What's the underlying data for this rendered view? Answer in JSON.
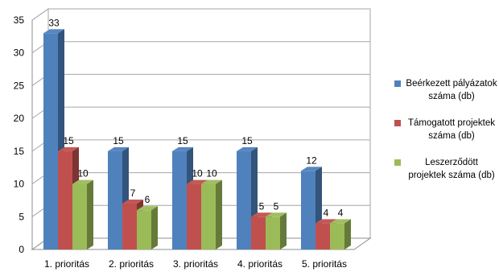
{
  "chart_data": {
    "type": "bar",
    "style": "3d-clustered-column",
    "categories": [
      "1. prioritás",
      "2. prioritás",
      "3. prioritás",
      "4. prioritás",
      "5. prioritás"
    ],
    "series": [
      {
        "name": "Beérkezett pályázatok száma (db)",
        "color": "#4F81BD",
        "values": [
          33,
          15,
          15,
          15,
          12
        ]
      },
      {
        "name": "Támogatott projektek száma (db)",
        "color": "#C0504D",
        "values": [
          15,
          7,
          10,
          5,
          4
        ]
      },
      {
        "name": "Leszerződött projektek száma (db)",
        "color": "#9BBB59",
        "values": [
          10,
          6,
          10,
          5,
          4
        ]
      }
    ],
    "ylim": [
      0,
      35
    ],
    "yticks": [
      0,
      5,
      10,
      15,
      20,
      25,
      30,
      35
    ],
    "grid": true,
    "legend_position": "right",
    "data_labels": true
  }
}
